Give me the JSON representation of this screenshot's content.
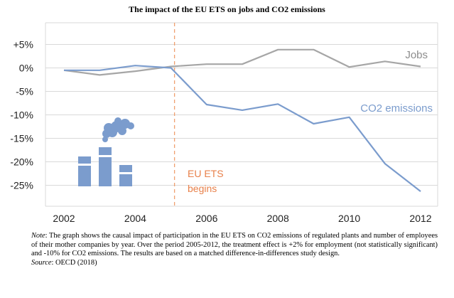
{
  "title": "The impact of the EU ETS on jobs and CO2 emissions",
  "colors": {
    "jobs": "#a6a6a6",
    "co2": "#7b9ccd",
    "event": "#f0a070",
    "event_text": "#e8804a",
    "icon": "#7b9ccd",
    "grid": "#d9d9d9"
  },
  "chart_data": {
    "type": "line",
    "title": "The impact of the EU ETS on jobs and CO2 emissions",
    "xlabel": "",
    "ylabel": "",
    "xlim": [
      2002,
      2012
    ],
    "ylim": [
      -30,
      7.5
    ],
    "x_ticks": [
      "2002",
      "2004",
      "2006",
      "2008",
      "2010",
      "2012"
    ],
    "y_ticks": [
      "+5%",
      "0%",
      "-5%",
      "-10%",
      "-15%",
      "-20%",
      "-25%"
    ],
    "y_tick_values": [
      5,
      0,
      -5,
      -10,
      -15,
      -20,
      -25
    ],
    "grid": "horizontal",
    "series": [
      {
        "name": "Jobs",
        "color": "#a6a6a6",
        "x": [
          2002,
          2003,
          2004,
          2005,
          2006,
          2007,
          2008,
          2009,
          2010,
          2011,
          2012
        ],
        "y": [
          -0.5,
          -1.5,
          -0.7,
          0.3,
          0.8,
          0.8,
          3.9,
          3.9,
          0.2,
          1.4,
          0.3
        ]
      },
      {
        "name": "CO2 emissions",
        "color": "#7b9ccd",
        "x": [
          2002,
          2003,
          2004,
          2005,
          2006,
          2007,
          2008,
          2009,
          2010,
          2011,
          2012
        ],
        "y": [
          -0.5,
          -0.5,
          0.5,
          0.0,
          -7.8,
          -9.0,
          -7.7,
          -11.9,
          -10.5,
          -20.4,
          -26.3
        ]
      }
    ],
    "event": {
      "x": 2005.1,
      "label_line1": "EU ETS",
      "label_line2": "begins"
    }
  },
  "note": {
    "label": "Note",
    "text": ": The graph shows the causal impact of participation in the EU ETS on CO2 emissions of regulated plants and number of employees of their mother companies by year. Over the period 2005-2012, the treatment effect is +2% for employment (not statistically significant) and -10% for CO2 emissions. The results are based on a matched difference-in-differences study design.",
    "source_label": "Source",
    "source_text": ": OECD (2018)"
  },
  "icon_name": "factory-icon"
}
